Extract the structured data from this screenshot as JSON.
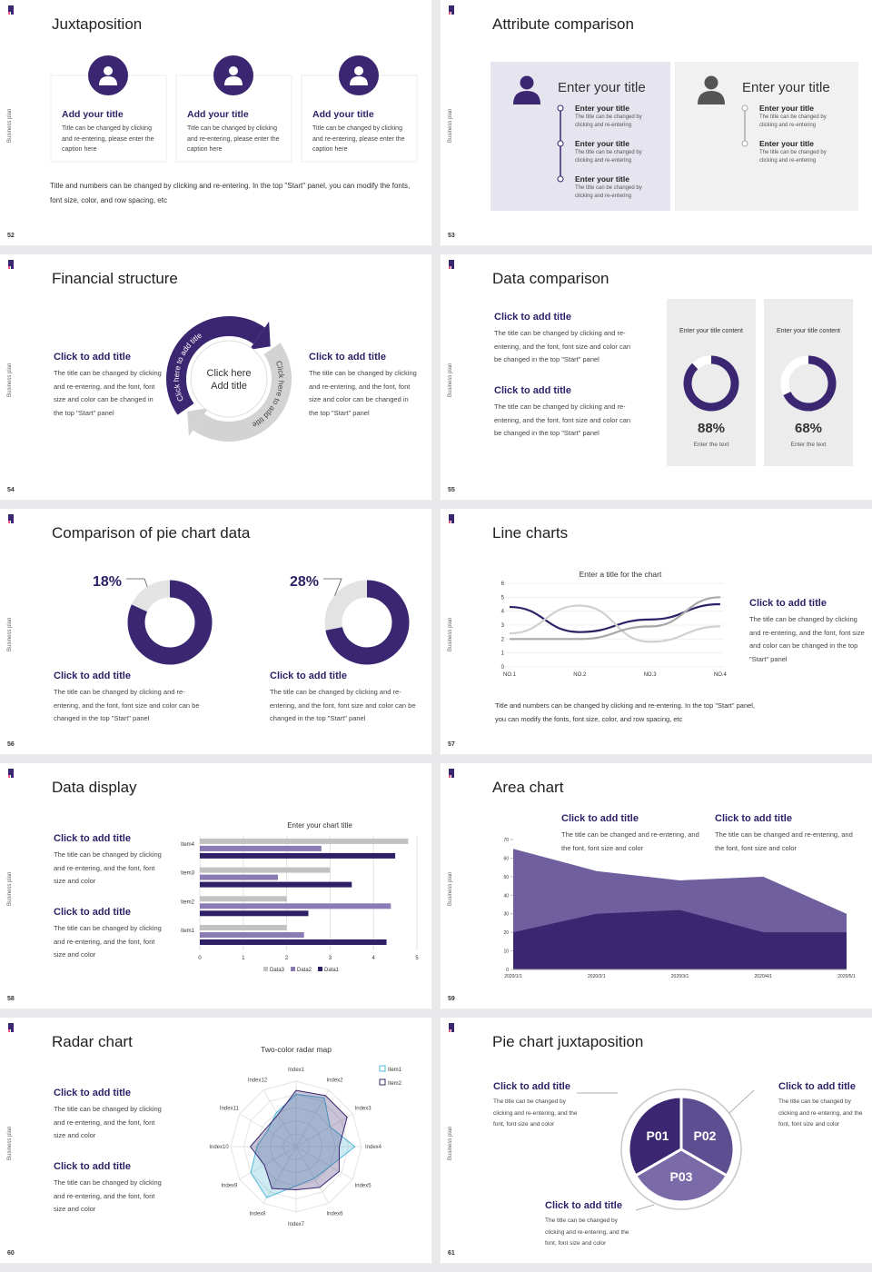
{
  "slides": [
    {
      "number": "52",
      "side_label": "Business plan",
      "title": "Juxtaposition",
      "cards": [
        {
          "title": "Add your title",
          "text": "Title can be changed by clicking and re-entering, please enter the caption here"
        },
        {
          "title": "Add your title",
          "text": "Title can be changed by clicking and re-entering, please enter the caption here"
        },
        {
          "title": "Add your title",
          "text": "Title can be changed by clicking and re-entering, please enter the caption here"
        }
      ],
      "footer": "Title and numbers can be changed by clicking and re-entering. In the top \"Start\" panel, you can modify the fonts, font size, color, and row spacing, etc"
    },
    {
      "number": "53",
      "side_label": "Business plan",
      "title": "Attribute comparison",
      "panels": [
        {
          "title": "Enter your title",
          "items": [
            {
              "title": "Enter your title",
              "text": "The title can be changed by clicking and re-entering"
            },
            {
              "title": "Enter your title",
              "text": "The title can be changed by clicking and re-entering"
            },
            {
              "title": "Enter your title",
              "text": "The title can be changed by clicking and re-entering"
            }
          ]
        },
        {
          "title": "Enter your title",
          "items": [
            {
              "title": "Enter your title",
              "text": "The title can be changed by clicking and re-entering"
            },
            {
              "title": "Enter your title",
              "text": "The title can be changed by clicking and re-entering"
            }
          ]
        }
      ]
    },
    {
      "number": "54",
      "side_label": "Business plan",
      "title": "Financial structure",
      "left": {
        "title": "Click to add title",
        "text": "The title can be changed by clicking and re-entering, and the font, font size and color can be changed in the top \"Start\" panel"
      },
      "right": {
        "title": "Click to add title",
        "text": "The title can be changed by clicking and re-entering, and the font, font size and color can be changed in the top \"Start\" panel"
      },
      "center_lines": [
        "Click here",
        "Add title"
      ],
      "arrow_labels": [
        "Click here to add title",
        "Click here to add title"
      ]
    },
    {
      "number": "55",
      "side_label": "Business plan",
      "title": "Data comparison",
      "blocks": [
        {
          "title": "Click to add title",
          "text": "The title can be changed by clicking and re-entering, and the font, font size and color can be changed in the top \"Start\" panel"
        },
        {
          "title": "Click to add title",
          "text": "The title can be changed by clicking and re-entering, and the font, font size and color can be changed in the top \"Start\" panel"
        }
      ],
      "cards": [
        {
          "heading": "Enter your title content",
          "value": 88,
          "value_label": "88%",
          "caption": "Enter the text"
        },
        {
          "heading": "Enter your title content",
          "value": 68,
          "value_label": "68%",
          "caption": "Enter the text"
        }
      ]
    },
    {
      "number": "56",
      "side_label": "Business plan",
      "title": "Comparison of pie chart data",
      "pies": [
        {
          "value": 18,
          "value_label": "18%",
          "title": "Click to add title",
          "text": "The title can be changed by clicking and re-entering, and the font, font size and color can be changed in the top \"Start\" panel"
        },
        {
          "value": 28,
          "value_label": "28%",
          "title": "Click to add title",
          "text": "The title can be changed by clicking and re-entering, and the font, font size and color can be changed in the top \"Start\" panel"
        }
      ]
    },
    {
      "number": "57",
      "side_label": "Business plan",
      "title": "Line charts",
      "chart": {
        "type": "line",
        "title": "Enter a title for the chart",
        "categories": [
          "NO.1",
          "NO.2",
          "NO.3",
          "NO.4"
        ],
        "ylim": [
          0,
          6
        ],
        "yticks": [
          0,
          1,
          2,
          3,
          4,
          5,
          6
        ],
        "series": [
          {
            "color": "#2e1f66",
            "values": [
              4.3,
              2.5,
              3.4,
              4.5
            ]
          },
          {
            "color": "#d0d0d0",
            "values": [
              2.4,
              4.4,
              1.8,
              2.9
            ]
          },
          {
            "color": "#a8a8a8",
            "values": [
              2,
              2,
              2.9,
              5
            ]
          }
        ]
      },
      "block": {
        "title": "Click to add title",
        "text": "The title can be changed by clicking and re-entering, and the font, font size and color can be changed in the top \"Start\" panel"
      },
      "footer": "Title and numbers can be changed by clicking and re-entering. In the top \"Start\" panel, you can modify the fonts, font size, color, and row spacing, etc"
    },
    {
      "number": "58",
      "side_label": "Business plan",
      "title": "Data display",
      "blocks": [
        {
          "title": "Click to add title",
          "text": "The title can be changed by clicking and re-entering, and the font, font size and color"
        },
        {
          "title": "Click to add title",
          "text": "The title can be changed by clicking and re-entering, and the font, font size and color"
        }
      ],
      "chart": {
        "type": "bar",
        "orientation": "horizontal",
        "title": "Enter your chart title",
        "categories": [
          "Item1",
          "Item2",
          "Item3",
          "Item4"
        ],
        "xlim": [
          0,
          5
        ],
        "xticks": [
          0,
          1,
          2,
          3,
          4,
          5
        ],
        "grid": true,
        "legend": "bottom",
        "series": [
          {
            "name": "Data1",
            "color": "#2e1f66",
            "values": [
              4.3,
              2.5,
              3.5,
              4.5
            ]
          },
          {
            "name": "Data2",
            "color": "#8a7bb5",
            "values": [
              2.4,
              4.4,
              1.8,
              2.8
            ]
          },
          {
            "name": "Data3",
            "color": "#c2c2c2",
            "values": [
              2,
              2,
              3,
              4.8
            ]
          }
        ]
      }
    },
    {
      "number": "59",
      "side_label": "Business plan",
      "title": "Area chart",
      "blocks": [
        {
          "title": "Click to add title",
          "text": "The title can be changed and re-entering, and the font, font size and color"
        },
        {
          "title": "Click to add title",
          "text": "The title can be changed and re-entering, and the font, font size and color"
        }
      ],
      "chart": {
        "type": "area",
        "categories": [
          "2020/1/1",
          "2020/2/1",
          "2020/3/1",
          "2020/4/1",
          "2020/5/1"
        ],
        "ylim": [
          0,
          70
        ],
        "yticks": [
          0,
          10,
          20,
          30,
          40,
          50,
          60,
          70
        ],
        "series": [
          {
            "color": "#6f5f9e",
            "values": [
              65,
              53,
              48,
              50,
              30
            ]
          },
          {
            "color": "#3b2671",
            "values": [
              20,
              30,
              32,
              20,
              20
            ]
          }
        ]
      }
    },
    {
      "number": "60",
      "side_label": "Business plan",
      "title": "Radar chart",
      "blocks": [
        {
          "title": "Click to add title",
          "text": "The title can be changed by clicking and re-entering, and the font, font size and color"
        },
        {
          "title": "Click to add title",
          "text": "The title can be changed by clicking and re-entering, and the font, font size and color"
        }
      ],
      "chart": {
        "type": "radar",
        "title": "Two-color radar map",
        "categories": [
          "Index1",
          "Index2",
          "Index3",
          "Index4",
          "Index5",
          "Index6",
          "Index7",
          "Index8",
          "Index9",
          "Index10",
          "Index11",
          "Index12"
        ],
        "rlim": [
          0,
          5
        ],
        "rticks": [
          1,
          2,
          3,
          4,
          5
        ],
        "legend": "top-right",
        "series": [
          {
            "name": "Item1",
            "color": "#4fb8d8",
            "values": [
              4,
              4.3,
              3,
              4.5,
              3,
              2.8,
              3,
              4.5,
              4,
              3,
              2.5,
              3
            ]
          },
          {
            "name": "Item2",
            "color": "#3b2671",
            "values": [
              4.3,
              4.5,
              4.5,
              3.3,
              3.8,
              3.6,
              3.3,
              3.7,
              2.8,
              3.5,
              2.7,
              2.8
            ]
          }
        ]
      }
    },
    {
      "number": "61",
      "side_label": "Business plan",
      "title": "Pie chart juxtaposition",
      "segments": [
        "P01",
        "P02",
        "P03"
      ],
      "blocks": [
        {
          "title": "Click to add title",
          "text": "The title can be changed by clicking and re-entering, and the font, font size and color"
        },
        {
          "title": "Click to add title",
          "text": "The title can be changed by clicking and re-entering, and the font, font size and color"
        },
        {
          "title": "Click to add title",
          "text": "The title can be changed by clicking and re-entering, and the font, font size and color"
        }
      ]
    }
  ]
}
